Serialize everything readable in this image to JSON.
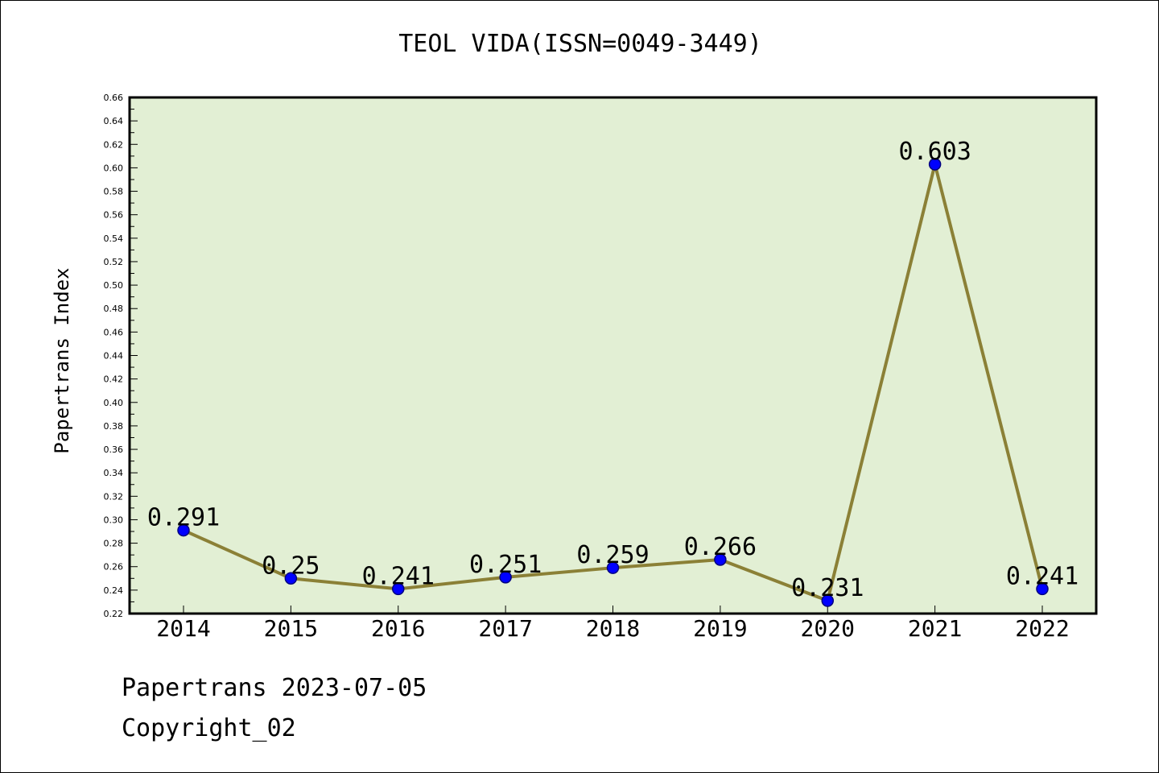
{
  "chart_data": {
    "type": "line",
    "title": "TEOL VIDA(ISSN=0049-3449)",
    "xlabel": "",
    "ylabel": "Papertrans Index",
    "categories": [
      "2014",
      "2015",
      "2016",
      "2017",
      "2018",
      "2019",
      "2020",
      "2021",
      "2022"
    ],
    "values": [
      0.291,
      0.25,
      0.241,
      0.251,
      0.259,
      0.266,
      0.231,
      0.603,
      0.241
    ],
    "data_labels": [
      "0.291",
      "0.25",
      "0.241",
      "0.251",
      "0.259",
      "0.266",
      "0.231",
      "0.603",
      "0.241"
    ],
    "ylim": [
      0.22,
      0.66
    ],
    "ytick_step": 0.02,
    "y_tick_labels": [
      "0.22",
      "0.24",
      "0.26",
      "0.28",
      "0.30",
      "0.32",
      "0.34",
      "0.36",
      "0.38",
      "0.40",
      "0.42",
      "0.44",
      "0.46",
      "0.48",
      "0.50",
      "0.52",
      "0.54",
      "0.56",
      "0.58",
      "0.60",
      "0.62",
      "0.64",
      "0.66"
    ],
    "grid": false,
    "colors": {
      "plot_background": "#e2efd4",
      "line": "#8b8036",
      "marker": "#0000ff",
      "marker_edge": "#000080"
    }
  },
  "footer": {
    "line1": "Papertrans 2023-07-05",
    "line2": "Copyright_02"
  }
}
